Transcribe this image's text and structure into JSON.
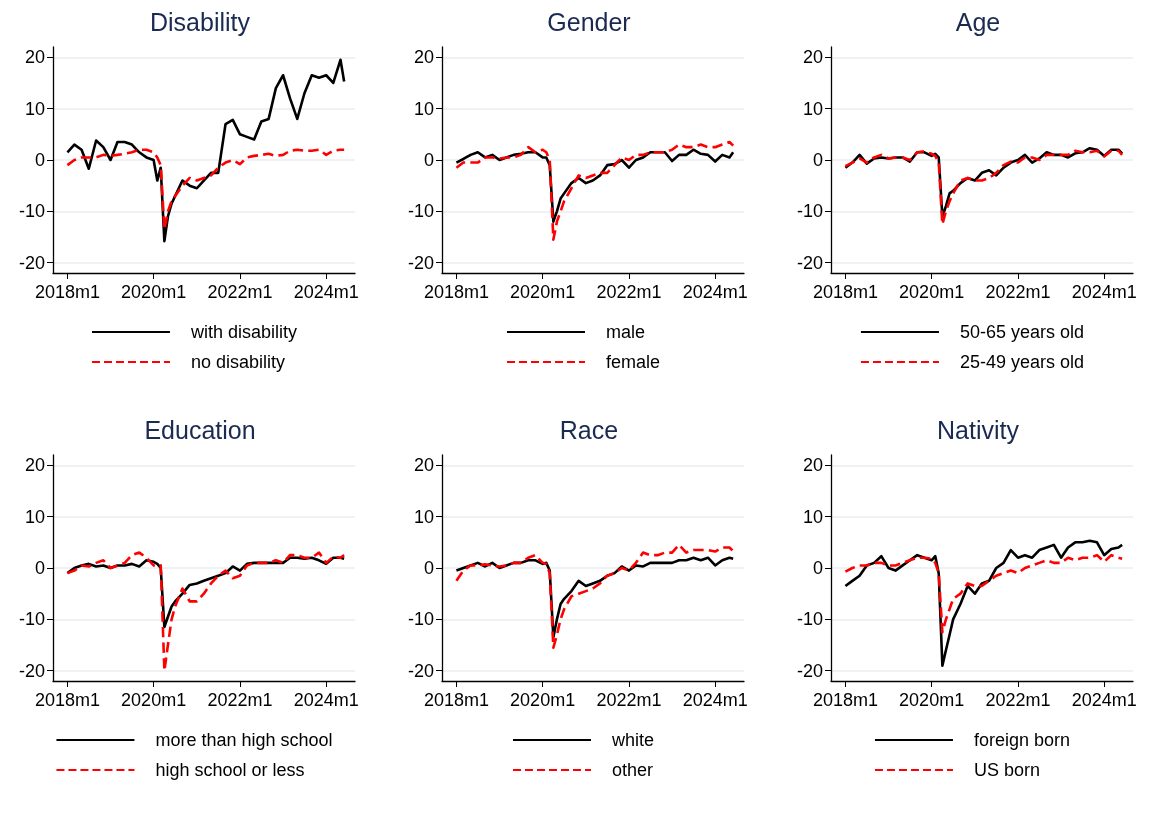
{
  "chart_data": [
    {
      "type": "line",
      "title": "Disability",
      "x": [
        "2018-01",
        "2018-03",
        "2018-05",
        "2018-07",
        "2018-09",
        "2018-11",
        "2019-01",
        "2019-03",
        "2019-05",
        "2019-07",
        "2019-09",
        "2019-11",
        "2020-01",
        "2020-02",
        "2020-03",
        "2020-04",
        "2020-05",
        "2020-06",
        "2020-07",
        "2020-09",
        "2020-11",
        "2021-01",
        "2021-03",
        "2021-05",
        "2021-07",
        "2021-09",
        "2021-11",
        "2022-01",
        "2022-03",
        "2022-05",
        "2022-07",
        "2022-09",
        "2022-11",
        "2023-01",
        "2023-03",
        "2023-05",
        "2023-07",
        "2023-09",
        "2023-11",
        "2024-01",
        "2024-03",
        "2024-05",
        "2024-06"
      ],
      "xlim": [
        "2017-09",
        "2024-09"
      ],
      "xticks": [
        {
          "value": "2018-01",
          "label": "2018m1"
        },
        {
          "value": "2020-01",
          "label": "2020m1"
        },
        {
          "value": "2022-01",
          "label": "2022m1"
        },
        {
          "value": "2024-01",
          "label": "2024m1"
        }
      ],
      "ylim": [
        -22,
        22
      ],
      "yticks": [
        -20,
        -10,
        0,
        10,
        20
      ],
      "grid": "y",
      "legend": "bottom",
      "marker": "none",
      "series": [
        {
          "name": "with disability",
          "color": "#000000",
          "line_style": "solid",
          "values": [
            1.5,
            3,
            2,
            -1.7,
            3.8,
            2.5,
            0,
            3.5,
            3.5,
            3,
            1.5,
            0.5,
            0,
            -4,
            -1.5,
            -15.8,
            -11,
            -8.5,
            -7,
            -4,
            -5,
            -5.5,
            -4,
            -2.5,
            -2.5,
            7,
            7.8,
            5,
            4.5,
            4,
            7.5,
            8,
            14,
            16.5,
            12,
            8,
            13,
            16.5,
            16,
            16.5,
            15,
            19.5,
            15.3
          ]
        },
        {
          "name": "no disability",
          "color": "#ff0000",
          "line_style": "dashed",
          "values": [
            -1,
            0,
            0.5,
            0.5,
            0.5,
            1,
            0.8,
            1,
            1.2,
            1.5,
            2,
            2,
            1.5,
            0.5,
            -1,
            -13.5,
            -10,
            -8,
            -7,
            -5,
            -3.5,
            -4,
            -3.5,
            -3,
            -1.5,
            -0.5,
            0,
            -0.8,
            0.5,
            0.8,
            1,
            1.2,
            0.8,
            1,
            1.8,
            2,
            1.8,
            1.8,
            2,
            1,
            1.8,
            2,
            2
          ]
        }
      ]
    },
    {
      "type": "line",
      "title": "Gender",
      "x": [
        "2018-01",
        "2018-03",
        "2018-05",
        "2018-07",
        "2018-09",
        "2018-11",
        "2019-01",
        "2019-03",
        "2019-05",
        "2019-07",
        "2019-09",
        "2019-11",
        "2020-01",
        "2020-02",
        "2020-03",
        "2020-04",
        "2020-05",
        "2020-06",
        "2020-07",
        "2020-09",
        "2020-11",
        "2021-01",
        "2021-03",
        "2021-05",
        "2021-07",
        "2021-09",
        "2021-11",
        "2022-01",
        "2022-03",
        "2022-05",
        "2022-07",
        "2022-09",
        "2022-11",
        "2023-01",
        "2023-03",
        "2023-05",
        "2023-07",
        "2023-09",
        "2023-11",
        "2024-01",
        "2024-03",
        "2024-05",
        "2024-06"
      ],
      "xlim": [
        "2017-09",
        "2024-09"
      ],
      "xticks": [
        {
          "value": "2018-01",
          "label": "2018m1"
        },
        {
          "value": "2020-01",
          "label": "2020m1"
        },
        {
          "value": "2022-01",
          "label": "2022m1"
        },
        {
          "value": "2024-01",
          "label": "2024m1"
        }
      ],
      "ylim": [
        -22,
        22
      ],
      "yticks": [
        -20,
        -10,
        0,
        10,
        20
      ],
      "grid": "y",
      "legend": "bottom",
      "marker": "none",
      "series": [
        {
          "name": "male",
          "color": "#000000",
          "line_style": "solid",
          "values": [
            -0.5,
            0.2,
            1,
            1.5,
            0.5,
            1,
            0,
            0.5,
            1,
            1.2,
            1.5,
            1.5,
            0.5,
            0.5,
            -1,
            -12,
            -10,
            -7.5,
            -6.5,
            -4.5,
            -3.5,
            -4.5,
            -4,
            -3,
            -1,
            -0.8,
            0,
            -1.5,
            0,
            0.5,
            1.5,
            1.5,
            1.5,
            -0.2,
            1,
            1,
            2,
            1.2,
            1,
            -0.3,
            1,
            0.5,
            1.5
          ]
        },
        {
          "name": "female",
          "color": "#ff0000",
          "line_style": "dashed",
          "values": [
            -1.5,
            -0.5,
            -0.5,
            -0.5,
            0.5,
            0.5,
            0.3,
            0.5,
            0.5,
            1,
            2.5,
            1.5,
            2,
            1.5,
            0,
            -15.5,
            -12,
            -10,
            -8,
            -5.5,
            -3,
            -3.5,
            -3,
            -2.5,
            -2.5,
            -1,
            0.5,
            0,
            1,
            1,
            1.5,
            1.5,
            1.5,
            2,
            3,
            2.5,
            2.5,
            3,
            2.5,
            2.5,
            3,
            3.5,
            2.8
          ]
        }
      ]
    },
    {
      "type": "line",
      "title": "Age",
      "x": [
        "2018-01",
        "2018-03",
        "2018-05",
        "2018-07",
        "2018-09",
        "2018-11",
        "2019-01",
        "2019-03",
        "2019-05",
        "2019-07",
        "2019-09",
        "2019-11",
        "2020-01",
        "2020-02",
        "2020-03",
        "2020-04",
        "2020-05",
        "2020-06",
        "2020-07",
        "2020-09",
        "2020-11",
        "2021-01",
        "2021-03",
        "2021-05",
        "2021-07",
        "2021-09",
        "2021-11",
        "2022-01",
        "2022-03",
        "2022-05",
        "2022-07",
        "2022-09",
        "2022-11",
        "2023-01",
        "2023-03",
        "2023-05",
        "2023-07",
        "2023-09",
        "2023-11",
        "2024-01",
        "2024-03",
        "2024-05",
        "2024-06"
      ],
      "xlim": [
        "2017-09",
        "2024-09"
      ],
      "xticks": [
        {
          "value": "2018-01",
          "label": "2018m1"
        },
        {
          "value": "2020-01",
          "label": "2020m1"
        },
        {
          "value": "2022-01",
          "label": "2022m1"
        },
        {
          "value": "2024-01",
          "label": "2024m1"
        }
      ],
      "ylim": [
        -22,
        22
      ],
      "yticks": [
        -20,
        -10,
        0,
        10,
        20
      ],
      "grid": "y",
      "legend": "bottom",
      "marker": "none",
      "series": [
        {
          "name": "50-65 years old",
          "color": "#000000",
          "line_style": "solid",
          "values": [
            -1.5,
            -0.5,
            1,
            -0.7,
            0.3,
            0.5,
            0.3,
            0.5,
            0.5,
            -0.3,
            1.5,
            1.5,
            0.8,
            1.2,
            0.5,
            -11,
            -9,
            -6.5,
            -6,
            -4.5,
            -3.5,
            -4,
            -2.5,
            -2,
            -3,
            -1.5,
            -0.5,
            0,
            1,
            -0.5,
            0.3,
            1.5,
            1,
            1,
            0.5,
            1.3,
            1.5,
            2.3,
            2,
            0.8,
            2,
            2,
            1.3
          ]
        },
        {
          "name": "25-49 years old",
          "color": "#ff0000",
          "line_style": "dashed",
          "values": [
            -1.2,
            -0.5,
            0.3,
            -0.5,
            0.5,
            1,
            0.3,
            0.5,
            0.5,
            0,
            1.5,
            1.7,
            1.2,
            0.8,
            -0.5,
            -12.5,
            -10,
            -8,
            -6.5,
            -4,
            -3.5,
            -4,
            -4,
            -3.5,
            -2.5,
            -1,
            -0.3,
            -0.5,
            0.5,
            0.5,
            0,
            1,
            1,
            1,
            1,
            1.8,
            1.5,
            1.5,
            1.8,
            0.7,
            1.8,
            1.8,
            1
          ]
        }
      ]
    },
    {
      "type": "line",
      "title": "Education",
      "x": [
        "2018-01",
        "2018-03",
        "2018-05",
        "2018-07",
        "2018-09",
        "2018-11",
        "2019-01",
        "2019-03",
        "2019-05",
        "2019-07",
        "2019-09",
        "2019-11",
        "2020-01",
        "2020-02",
        "2020-03",
        "2020-04",
        "2020-05",
        "2020-06",
        "2020-07",
        "2020-09",
        "2020-11",
        "2021-01",
        "2021-03",
        "2021-05",
        "2021-07",
        "2021-09",
        "2021-11",
        "2022-01",
        "2022-03",
        "2022-05",
        "2022-07",
        "2022-09",
        "2022-11",
        "2023-01",
        "2023-03",
        "2023-05",
        "2023-07",
        "2023-09",
        "2023-11",
        "2024-01",
        "2024-03",
        "2024-05",
        "2024-06"
      ],
      "xlim": [
        "2017-09",
        "2024-09"
      ],
      "xticks": [
        {
          "value": "2018-01",
          "label": "2018m1"
        },
        {
          "value": "2020-01",
          "label": "2020m1"
        },
        {
          "value": "2022-01",
          "label": "2022m1"
        },
        {
          "value": "2024-01",
          "label": "2024m1"
        }
      ],
      "ylim": [
        -22,
        22
      ],
      "yticks": [
        -20,
        -10,
        0,
        10,
        20
      ],
      "grid": "y",
      "legend": "bottom",
      "marker": "none",
      "series": [
        {
          "name": "more than high school",
          "color": "#000000",
          "line_style": "solid",
          "values": [
            -1,
            0,
            0.5,
            0.8,
            0.3,
            0.5,
            0,
            0.5,
            0.5,
            0.8,
            0.3,
            1.5,
            1.2,
            0.8,
            0,
            -11.5,
            -9.5,
            -7.5,
            -6.5,
            -5,
            -3.3,
            -3,
            -2.5,
            -2,
            -1.5,
            -1,
            0.3,
            -0.5,
            0.8,
            1,
            1,
            1,
            1,
            1,
            2,
            2,
            1.8,
            2,
            1.5,
            0.8,
            2,
            2,
            1.8
          ]
        },
        {
          "name": "high school or less",
          "color": "#ff0000",
          "line_style": "dashed",
          "values": [
            -1,
            -0.5,
            0.5,
            0.3,
            1,
            1.5,
            0,
            0.5,
            1,
            2.5,
            3,
            2,
            0.5,
            0.3,
            0.5,
            -20,
            -15,
            -10,
            -7.5,
            -4,
            -6.5,
            -6.5,
            -5,
            -3,
            -1.5,
            -0.5,
            -2,
            -1.5,
            0.5,
            1,
            1,
            1,
            1.5,
            1,
            2.5,
            2.5,
            2,
            2,
            3,
            1,
            2.2,
            2,
            2.5
          ]
        }
      ]
    },
    {
      "type": "line",
      "title": "Race",
      "x": [
        "2018-01",
        "2018-03",
        "2018-05",
        "2018-07",
        "2018-09",
        "2018-11",
        "2019-01",
        "2019-03",
        "2019-05",
        "2019-07",
        "2019-09",
        "2019-11",
        "2020-01",
        "2020-02",
        "2020-03",
        "2020-04",
        "2020-05",
        "2020-06",
        "2020-07",
        "2020-09",
        "2020-11",
        "2021-01",
        "2021-03",
        "2021-05",
        "2021-07",
        "2021-09",
        "2021-11",
        "2022-01",
        "2022-03",
        "2022-05",
        "2022-07",
        "2022-09",
        "2022-11",
        "2023-01",
        "2023-03",
        "2023-05",
        "2023-07",
        "2023-09",
        "2023-11",
        "2024-01",
        "2024-03",
        "2024-05",
        "2024-06"
      ],
      "xlim": [
        "2017-09",
        "2024-09"
      ],
      "xticks": [
        {
          "value": "2018-01",
          "label": "2018m1"
        },
        {
          "value": "2020-01",
          "label": "2020m1"
        },
        {
          "value": "2022-01",
          "label": "2022m1"
        },
        {
          "value": "2024-01",
          "label": "2024m1"
        }
      ],
      "ylim": [
        -22,
        22
      ],
      "yticks": [
        -20,
        -10,
        0,
        10,
        20
      ],
      "grid": "y",
      "legend": "bottom",
      "marker": "none",
      "series": [
        {
          "name": "white",
          "color": "#000000",
          "line_style": "solid",
          "values": [
            -0.5,
            0,
            0.5,
            1,
            0.3,
            1,
            0,
            0.5,
            1,
            1,
            1.5,
            1.5,
            0.8,
            1,
            -0.5,
            -13.5,
            -10,
            -7,
            -6,
            -4.5,
            -2.5,
            -3.5,
            -3,
            -2.5,
            -1.5,
            -1,
            0.3,
            -0.5,
            0.5,
            0.3,
            1,
            1,
            1,
            1,
            1.5,
            1.5,
            2,
            1.5,
            2,
            0.5,
            1.5,
            2,
            1.8
          ]
        },
        {
          "name": "other",
          "color": "#ff0000",
          "line_style": "dashed",
          "values": [
            -2.5,
            -0.5,
            0.5,
            0.5,
            0.7,
            0.5,
            0.3,
            0.5,
            1,
            1,
            2,
            2.5,
            1,
            0.8,
            -1,
            -15.5,
            -13,
            -10,
            -8,
            -5.5,
            -5,
            -4.5,
            -4,
            -3,
            -1.5,
            -1,
            0,
            -0.5,
            1,
            3,
            2.5,
            2.5,
            3,
            3,
            4.5,
            3,
            3.5,
            3.5,
            3.5,
            3.2,
            4,
            4,
            3.3
          ]
        }
      ]
    },
    {
      "type": "line",
      "title": "Nativity",
      "x": [
        "2018-01",
        "2018-03",
        "2018-05",
        "2018-07",
        "2018-09",
        "2018-11",
        "2019-01",
        "2019-03",
        "2019-05",
        "2019-07",
        "2019-09",
        "2019-11",
        "2020-01",
        "2020-02",
        "2020-03",
        "2020-04",
        "2020-05",
        "2020-06",
        "2020-07",
        "2020-09",
        "2020-11",
        "2021-01",
        "2021-03",
        "2021-05",
        "2021-07",
        "2021-09",
        "2021-11",
        "2022-01",
        "2022-03",
        "2022-05",
        "2022-07",
        "2022-09",
        "2022-11",
        "2023-01",
        "2023-03",
        "2023-05",
        "2023-07",
        "2023-09",
        "2023-11",
        "2024-01",
        "2024-03",
        "2024-05",
        "2024-06"
      ],
      "xlim": [
        "2017-09",
        "2024-09"
      ],
      "xticks": [
        {
          "value": "2018-01",
          "label": "2018m1"
        },
        {
          "value": "2020-01",
          "label": "2020m1"
        },
        {
          "value": "2022-01",
          "label": "2022m1"
        },
        {
          "value": "2024-01",
          "label": "2024m1"
        }
      ],
      "ylim": [
        -22,
        22
      ],
      "yticks": [
        -20,
        -10,
        0,
        10,
        20
      ],
      "grid": "y",
      "legend": "bottom",
      "marker": "none",
      "series": [
        {
          "name": "foreign born",
          "color": "#000000",
          "line_style": "solid",
          "values": [
            -3.5,
            -2.5,
            -1.5,
            0.5,
            1,
            2.3,
            0,
            -0.5,
            0.5,
            1.5,
            2.5,
            2,
            1.5,
            2.3,
            -1,
            -19,
            -16,
            -13,
            -10,
            -7,
            -3.5,
            -5,
            -3,
            -2.5,
            0,
            1,
            3.5,
            2,
            2.5,
            2,
            3.5,
            4,
            4.5,
            2,
            4,
            5,
            5,
            5.3,
            5,
            2.5,
            3.7,
            4,
            4.5
          ]
        },
        {
          "name": "US born",
          "color": "#ff0000",
          "line_style": "dashed",
          "values": [
            -0.7,
            0,
            0.5,
            0.5,
            1,
            1,
            0.5,
            0.5,
            1,
            1.5,
            2,
            2,
            1.8,
            1,
            -1,
            -12.5,
            -10,
            -8,
            -6,
            -5,
            -3,
            -3.5,
            -3.5,
            -2.5,
            -1.5,
            -1,
            -0.5,
            -1,
            0,
            0.5,
            1,
            1.5,
            1,
            1,
            2,
            1.5,
            2,
            2,
            2.5,
            1.2,
            2.5,
            2,
            1.8
          ]
        }
      ]
    }
  ]
}
